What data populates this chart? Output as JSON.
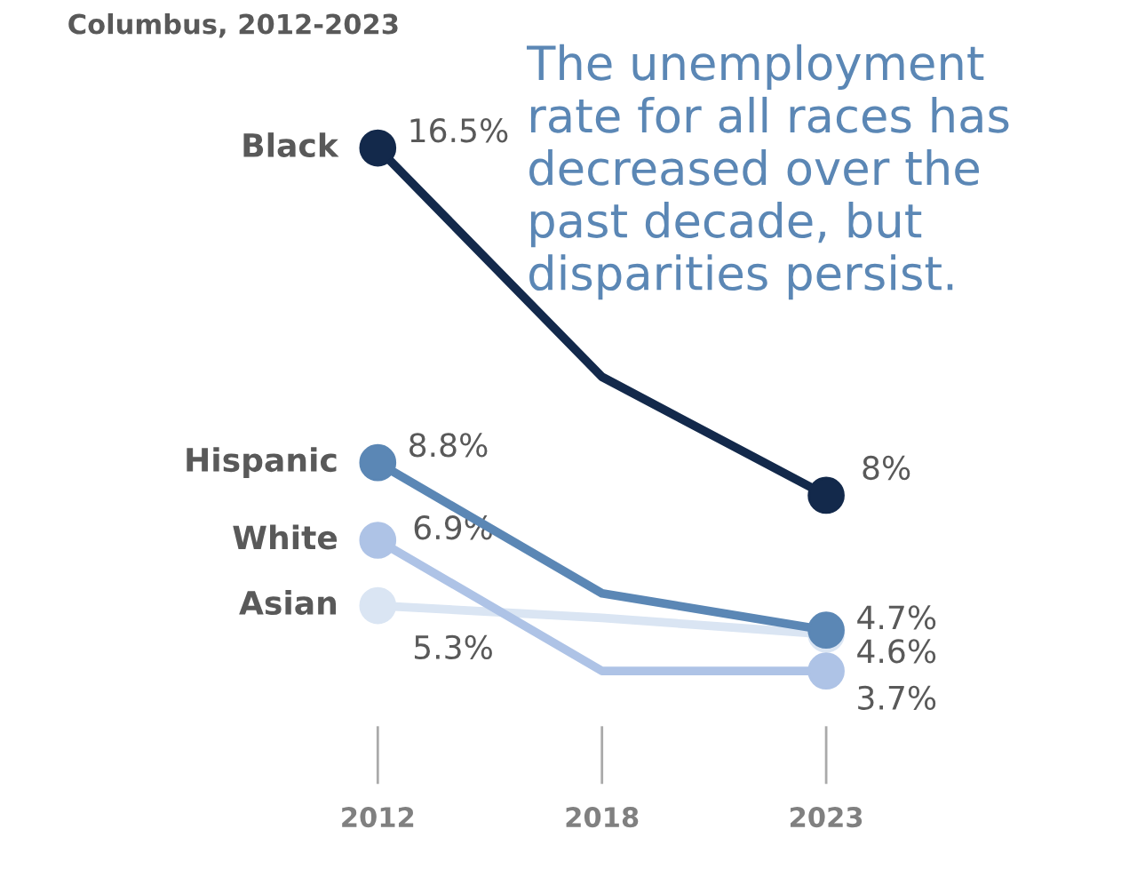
{
  "chart_data": {
    "type": "line",
    "title": "Columbus, 2012-2023",
    "categories": [
      "2012",
      "2018",
      "2023"
    ],
    "marker": "circle",
    "grid": false,
    "series": [
      {
        "name": "Black",
        "color": "#13294b",
        "values": [
          16.5,
          10.9,
          8
        ],
        "value_labels": [
          "16.5%",
          null,
          "8%"
        ]
      },
      {
        "name": "Hispanic",
        "color": "#5b87b5",
        "values": [
          8.8,
          5.6,
          4.7
        ],
        "value_labels": [
          "8.8%",
          null,
          "4.7%"
        ]
      },
      {
        "name": "White",
        "color": "#aec3e6",
        "values": [
          6.9,
          3.7,
          3.7
        ],
        "value_labels": [
          "6.9%",
          null,
          "3.7%"
        ]
      },
      {
        "name": "Asian",
        "color": "#dae5f3",
        "values": [
          5.3,
          5.0,
          4.6
        ],
        "value_labels": [
          "5.3%",
          null,
          "4.6%"
        ]
      }
    ],
    "annotations": [
      "The unemployment rate for all races has decreased over the past decade, but disparities persist."
    ]
  }
}
